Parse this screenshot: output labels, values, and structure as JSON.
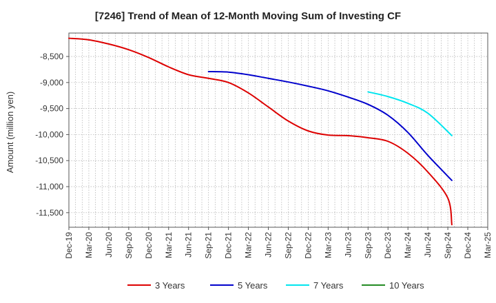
{
  "chart_data": {
    "type": "line",
    "title": "[7246]  Trend of Mean of 12-Month Moving Sum of Investing CF",
    "xlabel": "",
    "ylabel": "Amount (million yen)",
    "ylim": [
      -11780,
      -8050
    ],
    "yticks": [
      -8500,
      -9000,
      -9500,
      -10000,
      -10500,
      -11000,
      -11500
    ],
    "ytick_labels": [
      "-8,500",
      "-9,000",
      "-9,500",
      "-10,000",
      "-10,500",
      "-11,000",
      "-11,500"
    ],
    "x_start": "Dec-19",
    "n_months": 63,
    "xtick_labels": [
      "Dec-19",
      "Mar-20",
      "Jun-20",
      "Sep-20",
      "Dec-20",
      "Mar-21",
      "Jun-21",
      "Sep-21",
      "Dec-21",
      "Mar-22",
      "Jun-22",
      "Sep-22",
      "Dec-22",
      "Mar-23",
      "Jun-23",
      "Sep-23",
      "Dec-23",
      "Mar-24",
      "Jun-24",
      "Sep-24",
      "Dec-24",
      "Mar-25"
    ],
    "grid": true,
    "legend_position": "bottom",
    "series": [
      {
        "name": "3 Years",
        "color": "#dd0000",
        "points": [
          [
            0,
            -8150
          ],
          [
            3,
            -8180
          ],
          [
            6,
            -8260
          ],
          [
            9,
            -8370
          ],
          [
            12,
            -8520
          ],
          [
            15,
            -8700
          ],
          [
            18,
            -8850
          ],
          [
            21,
            -8920
          ],
          [
            24,
            -9000
          ],
          [
            27,
            -9200
          ],
          [
            30,
            -9470
          ],
          [
            33,
            -9740
          ],
          [
            36,
            -9930
          ],
          [
            39,
            -10010
          ],
          [
            42,
            -10020
          ],
          [
            45,
            -10060
          ],
          [
            48,
            -10130
          ],
          [
            51,
            -10360
          ],
          [
            54,
            -10720
          ],
          [
            57,
            -11220
          ],
          [
            57.6,
            -11730
          ]
        ]
      },
      {
        "name": "5 Years",
        "color": "#0000cc",
        "points": [
          [
            21,
            -8790
          ],
          [
            24,
            -8800
          ],
          [
            27,
            -8850
          ],
          [
            30,
            -8920
          ],
          [
            33,
            -8990
          ],
          [
            36,
            -9070
          ],
          [
            39,
            -9160
          ],
          [
            42,
            -9280
          ],
          [
            45,
            -9420
          ],
          [
            48,
            -9630
          ],
          [
            51,
            -9960
          ],
          [
            54,
            -10400
          ],
          [
            57.6,
            -10880
          ]
        ]
      },
      {
        "name": "7 Years",
        "color": "#00e5ee",
        "points": [
          [
            45,
            -9180
          ],
          [
            48,
            -9270
          ],
          [
            51,
            -9400
          ],
          [
            54,
            -9590
          ],
          [
            57.6,
            -10020
          ]
        ]
      },
      {
        "name": "10 Years",
        "color": "#228b22",
        "points": []
      }
    ]
  }
}
